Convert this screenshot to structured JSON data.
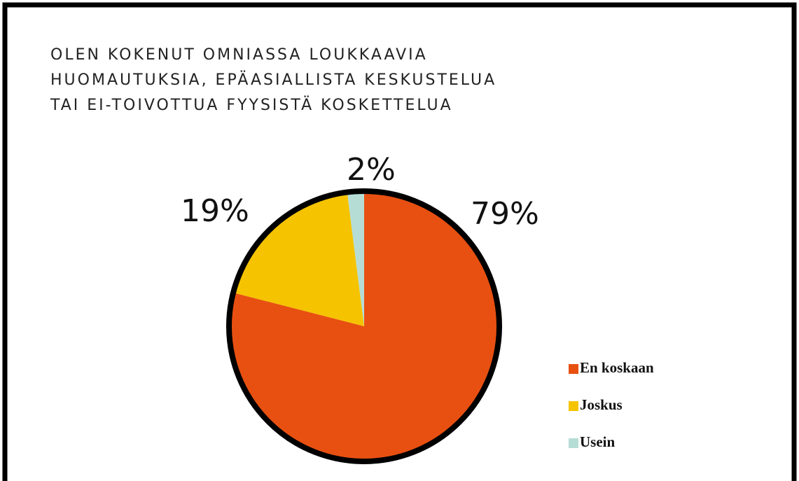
{
  "chart_data": {
    "type": "pie",
    "title": [
      "OLEN KOKENUT OMNIASSA LOUKKAAVIA",
      "HUOMAUTUKSIA, EPÄASIALLISTA KESKUSTELUA",
      "TAI EI-TOIVOTTUA FYYSISTÄ KOSKETTELUA"
    ],
    "categories": [
      "En koskaan",
      "Joskus",
      "Usein"
    ],
    "values": [
      79,
      19,
      2
    ],
    "value_labels": [
      "79%",
      "19%",
      "2%"
    ],
    "colors": [
      "#e85011",
      "#f5c300",
      "#b5ddd5"
    ],
    "legend": "right"
  }
}
